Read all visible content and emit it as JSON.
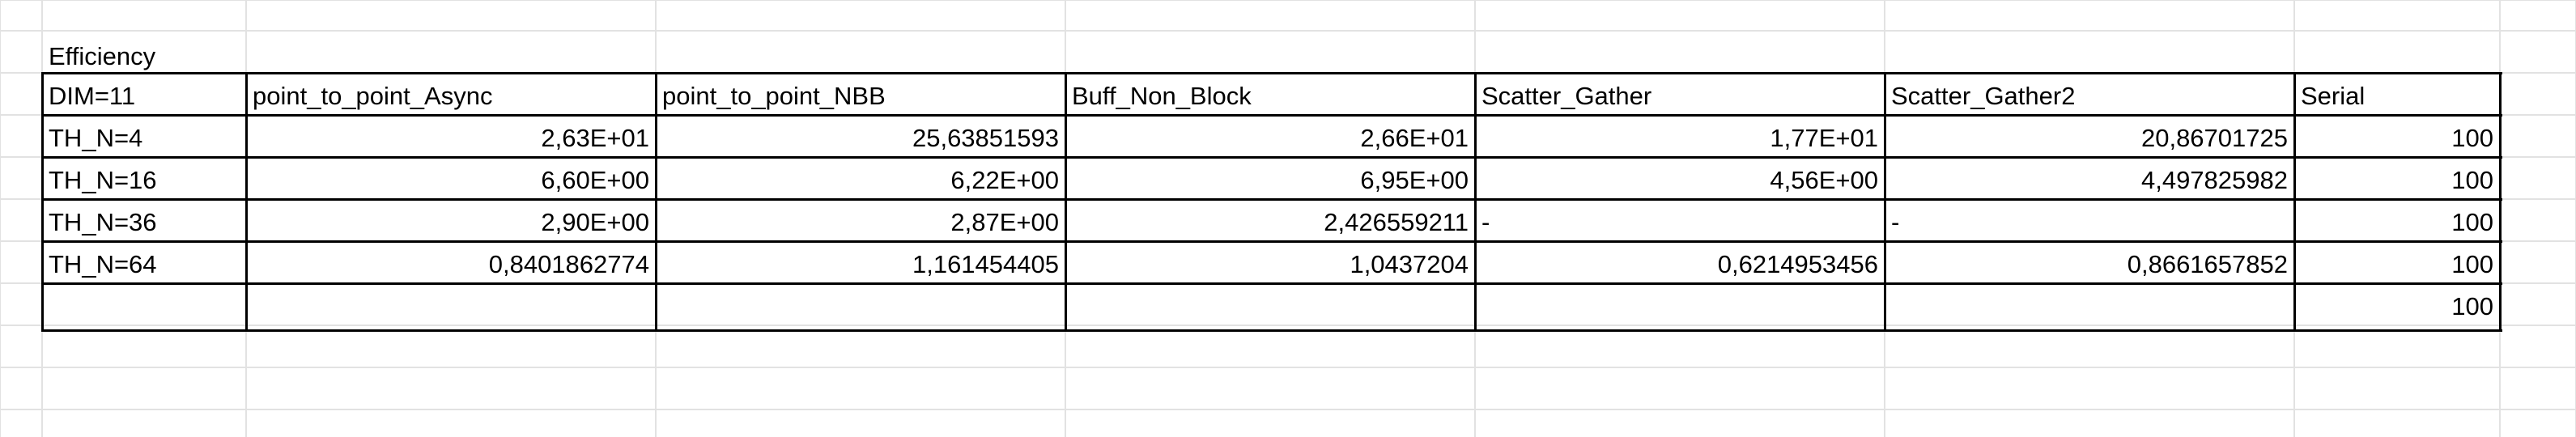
{
  "sheet": {
    "title": "Efficiency",
    "header": [
      "DIM=11",
      "point_to_point_Async",
      "point_to_point_NBB",
      "Buff_Non_Block",
      "Scatter_Gather",
      "Scatter_Gather2",
      "Serial"
    ],
    "rows": [
      [
        "TH_N=4",
        "2,63E+01",
        "25,63851593",
        "2,66E+01",
        "1,77E+01",
        "20,86701725",
        "100"
      ],
      [
        "TH_N=16",
        "6,60E+00",
        "6,22E+00",
        "6,95E+00",
        "4,56E+00",
        "4,497825982",
        "100"
      ],
      [
        "TH_N=36",
        "2,90E+00",
        "2,87E+00",
        "2,426559211",
        "-",
        "-",
        "100"
      ],
      [
        "TH_N=64",
        "0,8401862774",
        "1,161454405",
        "1,0437204",
        "0,6214953456",
        "0,8661657852",
        "100"
      ],
      [
        "",
        "",
        "",
        "",
        "",
        "",
        "100"
      ]
    ]
  }
}
